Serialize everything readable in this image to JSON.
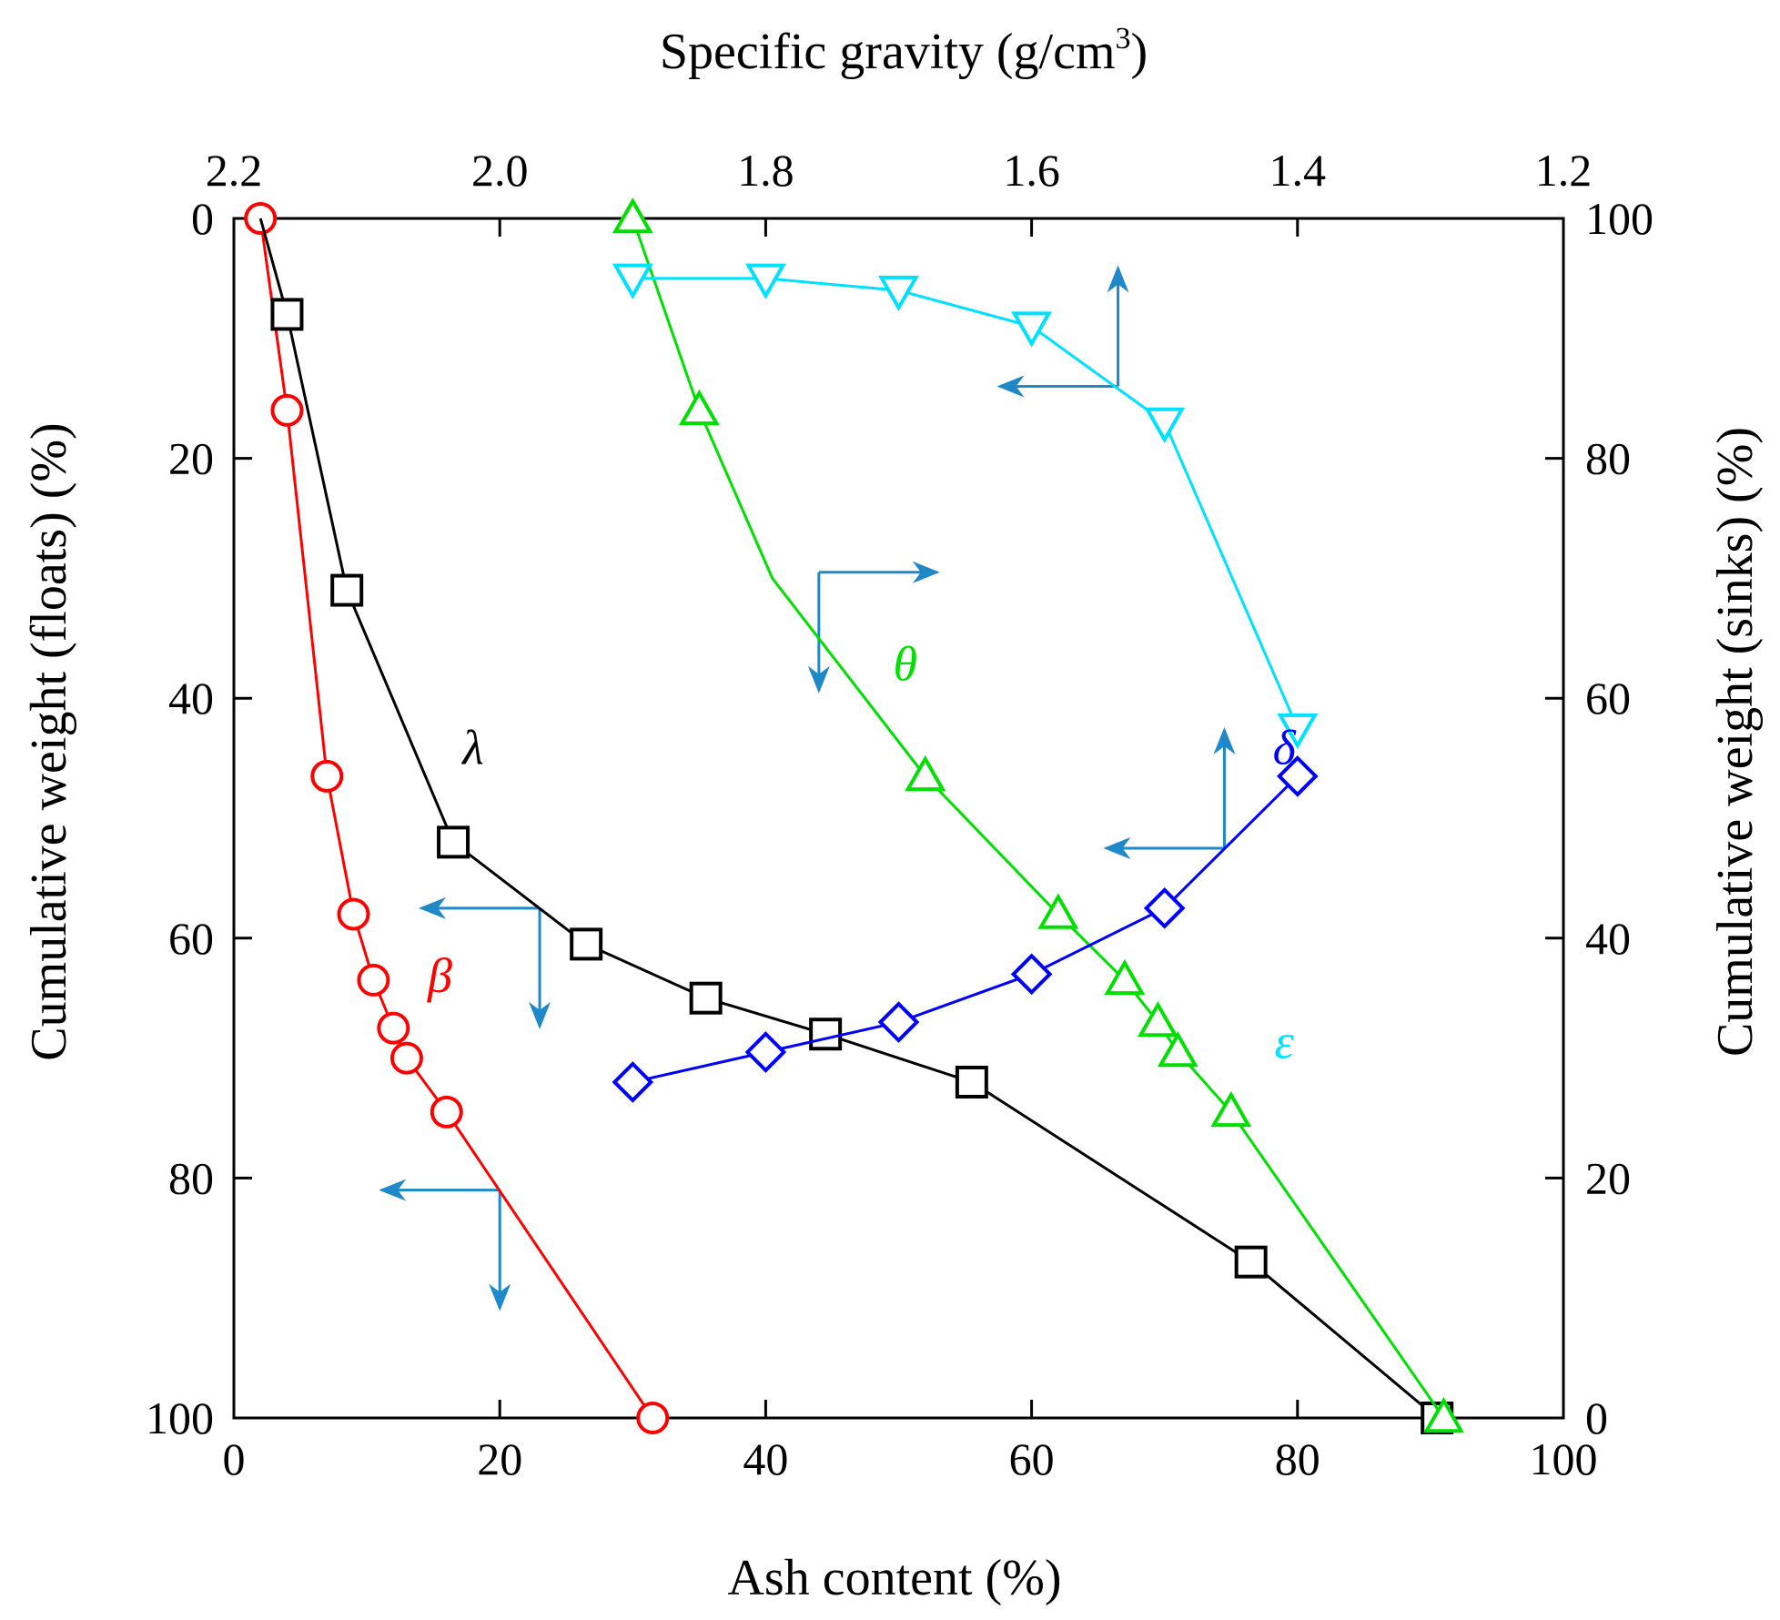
{
  "chart_data": {
    "type": "scatter",
    "title": "",
    "xlabel": "Ash content (%)",
    "ylabel_left": "Cumulative weight (floats) (%)",
    "ylabel_right": "Cumulative weight (sinks) (%)",
    "x2label_main": "Specific gravity (g/cm",
    "x2label_sup": "3",
    "x2label_end": ")",
    "xlim": [
      0,
      100
    ],
    "ylim_left": [
      0,
      100
    ],
    "ylim_right": [
      100,
      0
    ],
    "x2lim": [
      2.2,
      1.2
    ],
    "x_ticks": [
      "0",
      "20",
      "40",
      "60",
      "80",
      "100"
    ],
    "y_left_ticks": [
      "0",
      "20",
      "40",
      "60",
      "80",
      "100"
    ],
    "y_right_ticks": [
      "100",
      "80",
      "60",
      "40",
      "20",
      "0"
    ],
    "x2_ticks": [
      "2.2",
      "2.0",
      "1.8",
      "1.6",
      "1.4",
      "1.2"
    ],
    "grid": false,
    "series": [
      {
        "name": "β",
        "color": "#ff0000",
        "marker": "circle",
        "axes": "ash-floats",
        "points": [
          [
            2,
            0
          ],
          [
            4,
            16
          ],
          [
            7,
            46.5
          ],
          [
            9,
            58
          ],
          [
            10.5,
            63.5
          ],
          [
            12,
            67.5
          ],
          [
            13,
            70
          ],
          [
            16,
            74.5
          ],
          [
            31.5,
            100
          ]
        ],
        "marker_count": 9,
        "label_pos": [
          15.5,
          64.5
        ]
      },
      {
        "name": "λ",
        "color": "#000000",
        "marker": "square",
        "axes": "ash-floats",
        "points": [
          [
            2,
            0
          ],
          [
            4,
            8
          ],
          [
            8.5,
            31
          ],
          [
            16.5,
            52
          ],
          [
            26.5,
            60.5
          ],
          [
            35.5,
            65
          ],
          [
            44.5,
            68
          ],
          [
            55.5,
            72
          ],
          [
            76.5,
            87
          ],
          [
            90.5,
            100
          ]
        ],
        "marker_count": 9,
        "label_pos": [
          18,
          45.5
        ]
      },
      {
        "name": "θ",
        "color": "#00e000",
        "marker": "triangle-up",
        "axes": "sg-floats",
        "points": [
          [
            1.9,
            0
          ],
          [
            1.85,
            16
          ],
          [
            1.795,
            30
          ],
          [
            1.68,
            46.5
          ],
          [
            1.58,
            58
          ],
          [
            1.53,
            63.5
          ],
          [
            1.505,
            67
          ],
          [
            1.49,
            69.5
          ],
          [
            1.45,
            74.5
          ],
          [
            1.29,
            100
          ]
        ],
        "marker_count": 9,
        "label_pos": [
          1.695,
          38.5
        ]
      },
      {
        "name": "ε",
        "color": "#00e0ff",
        "marker": "triangle-down",
        "axes": "sg-sinks",
        "points": [
          [
            1.9,
            95
          ],
          [
            1.8,
            95
          ],
          [
            1.7,
            94
          ],
          [
            1.6,
            91
          ],
          [
            1.5,
            83
          ],
          [
            1.4,
            57.5
          ]
        ],
        "marker_count": 6,
        "label_pos": [
          1.41,
          70
        ]
      },
      {
        "name": "δ",
        "color": "#0000ff",
        "marker": "diamond",
        "axes": "ash-sinks",
        "points": [
          [
            30,
            28
          ],
          [
            40,
            30.5
          ],
          [
            50,
            33
          ],
          [
            60,
            37
          ],
          [
            70,
            42.5
          ],
          [
            80,
            53.5
          ]
        ],
        "marker_count": 6,
        "label_pos": [
          79,
          45.5
        ]
      }
    ],
    "indicator_color": "#1e88c8"
  }
}
